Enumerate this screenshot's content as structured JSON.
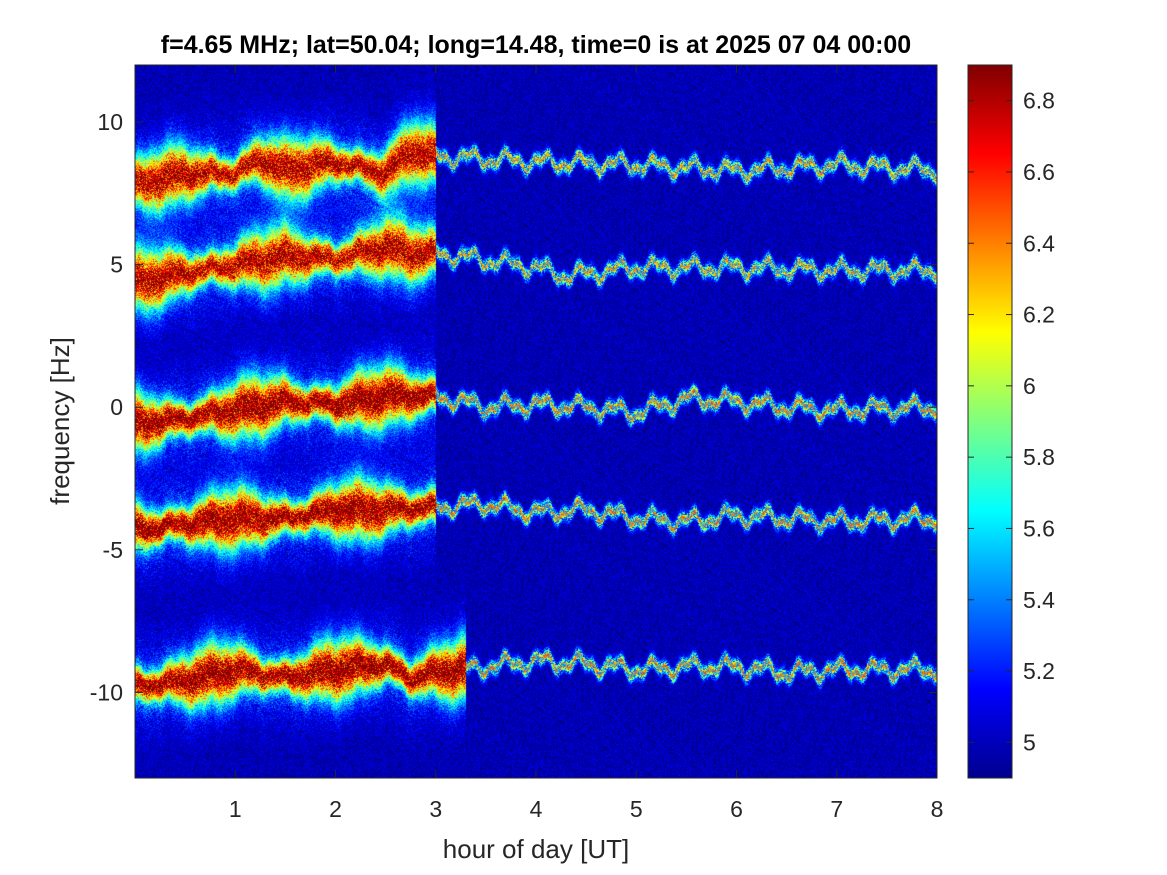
{
  "chart_data": {
    "type": "heatmap",
    "title": "f=4.65 MHz;  lat=50.04; long=14.48, time=0 is at 2025 07 04 00:00",
    "xlabel": "hour of day [UT]",
    "ylabel": "frequency [Hz]",
    "xlim": [
      0,
      8
    ],
    "ylim": [
      -13,
      12
    ],
    "x_ticks": [
      1,
      2,
      3,
      4,
      5,
      6,
      7,
      8
    ],
    "x_tick_labels": [
      "1",
      "2",
      "3",
      "4",
      "5",
      "6",
      "7",
      "8"
    ],
    "y_ticks": [
      10,
      5,
      0,
      -5,
      -10
    ],
    "y_tick_labels": [
      "10",
      "5",
      "0",
      "-5",
      "-10"
    ],
    "colorbar": {
      "colormap": "jet",
      "range": [
        4.9,
        6.9
      ],
      "ticks": [
        6.8,
        6.6,
        6.4,
        6.2,
        6,
        5.8,
        5.6,
        5.4,
        5.2,
        5
      ],
      "tick_labels": [
        "6.8",
        "6.6",
        "6.4",
        "6.2",
        "6",
        "5.8",
        "5.6",
        "5.4",
        "5.2",
        "5"
      ]
    },
    "background_level": 5.0,
    "traces": [
      {
        "x": [
          0.0,
          0.5,
          1.0,
          1.25,
          1.5,
          2.0,
          2.5,
          2.75,
          3.0,
          4.0,
          5.0,
          6.0,
          7.0,
          8.0
        ],
        "y": [
          7.8,
          8.2,
          8.2,
          8.7,
          8.3,
          8.6,
          8.2,
          9.0,
          8.8,
          8.6,
          8.5,
          8.3,
          8.5,
          8.3
        ],
        "peak": 6.7,
        "strong_until": 3.0,
        "end": 8.0
      },
      {
        "x": [
          0.0,
          0.5,
          1.0,
          1.5,
          2.0,
          2.5,
          2.75,
          3.0,
          4.0,
          4.3,
          5.0,
          6.0,
          7.0,
          8.0
        ],
        "y": [
          4.4,
          4.7,
          5.0,
          5.3,
          5.2,
          5.6,
          5.4,
          5.4,
          4.9,
          4.6,
          4.9,
          4.9,
          4.8,
          4.8
        ],
        "peak": 6.7,
        "strong_until": 3.0,
        "end": 8.0
      },
      {
        "x": [
          0.0,
          0.5,
          1.0,
          1.5,
          2.0,
          2.5,
          3.0,
          3.5,
          4.0,
          4.5,
          5.0,
          5.5,
          6.0,
          6.5,
          7.0,
          8.0
        ],
        "y": [
          -0.6,
          -0.4,
          -0.1,
          0.2,
          0.1,
          0.4,
          0.4,
          0.0,
          0.1,
          0.0,
          -0.2,
          0.3,
          0.2,
          0.0,
          -0.1,
          0.0
        ],
        "peak": 6.8,
        "strong_until": 3.0,
        "end": 8.0
      },
      {
        "x": [
          0.0,
          0.5,
          1.0,
          1.5,
          2.0,
          2.5,
          3.0,
          3.5,
          4.0,
          4.5,
          5.0,
          5.5,
          6.0,
          6.5,
          7.0,
          8.0
        ],
        "y": [
          -4.3,
          -4.1,
          -3.9,
          -3.9,
          -3.6,
          -3.6,
          -3.5,
          -3.4,
          -3.7,
          -3.6,
          -3.9,
          -4.0,
          -3.8,
          -3.9,
          -4.0,
          -3.9
        ],
        "peak": 6.8,
        "strong_until": 3.0,
        "end": 8.0
      },
      {
        "x": [
          0.0,
          0.5,
          1.0,
          1.5,
          2.0,
          2.5,
          2.75,
          3.0,
          3.5,
          4.0,
          4.5,
          5.0,
          5.5,
          6.0,
          6.5,
          7.0,
          8.0
        ],
        "y": [
          -9.8,
          -9.6,
          -9.2,
          -9.5,
          -9.2,
          -9.0,
          -9.5,
          -9.3,
          -9.1,
          -8.9,
          -9.0,
          -9.2,
          -9.1,
          -9.1,
          -9.3,
          -9.2,
          -9.2
        ],
        "peak": 6.8,
        "strong_until": 3.3,
        "end": 8.0
      }
    ],
    "grid": false
  }
}
